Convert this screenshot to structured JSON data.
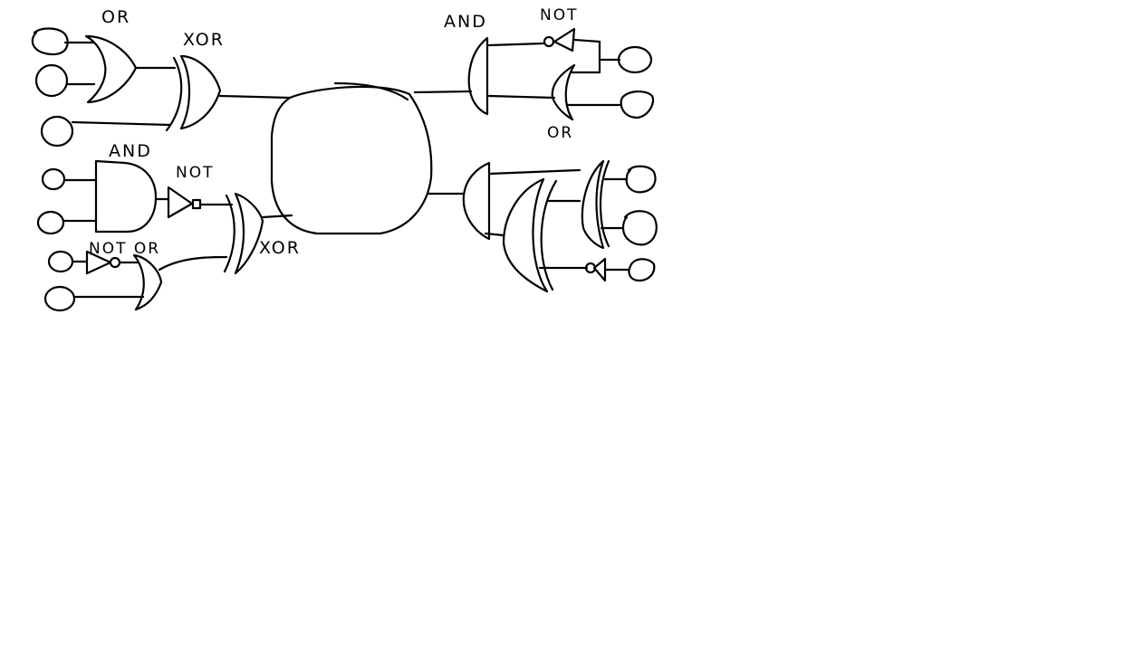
{
  "diagram": {
    "labels": {
      "or_top_left": "OR",
      "xor_top": "XOR",
      "and_left": "AND",
      "not_left": "NOT",
      "not_or_bottom": "NOT OR",
      "xnor_center": "XOR",
      "and_top_right": "AND",
      "not_top_right": "NOT",
      "or_right": "OR"
    }
  }
}
